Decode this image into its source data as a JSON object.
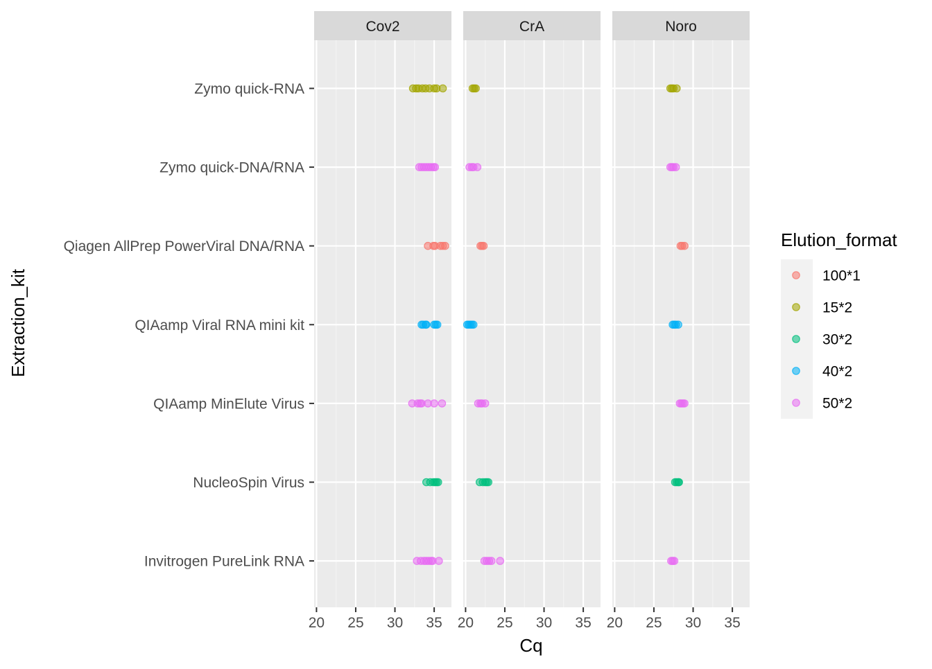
{
  "chart_data": {
    "type": "scatter",
    "facet_variable": "Target",
    "facets": [
      "Cov2",
      "CrA",
      "Noro"
    ],
    "y_categories": [
      "Zymo quick-RNA",
      "Zymo quick-DNA/RNA",
      "Qiagen AllPrep PowerViral DNA/RNA",
      "QIAamp Viral RNA mini kit",
      "QIAamp MinElute Virus",
      "NucleoSpin Virus",
      "Invitrogen PureLink RNA"
    ],
    "xlabel": "Cq",
    "ylabel": "Extraction_kit",
    "xlim": [
      19.7,
      37.2
    ],
    "xticks": [
      20,
      25,
      30,
      35
    ],
    "grid": true,
    "legend": {
      "title": "Elution_format",
      "placement": "right",
      "entries": [
        {
          "label": "100*1",
          "color": "#F8766D"
        },
        {
          "label": "15*2",
          "color": "#A3A500"
        },
        {
          "label": "30*2",
          "color": "#00BF7D"
        },
        {
          "label": "40*2",
          "color": "#00B0F6"
        },
        {
          "label": "50*2",
          "color": "#E76BF3"
        }
      ]
    },
    "points": {
      "Cov2": [
        {
          "kit": "Zymo quick-RNA",
          "format": "15*2",
          "cq": [
            32.3,
            32.7,
            33.0,
            33.5,
            33.9,
            34.4,
            35.0,
            35.3,
            36.1
          ]
        },
        {
          "kit": "Zymo quick-DNA/RNA",
          "format": "50*2",
          "cq": [
            33.1,
            33.4,
            33.7,
            34.0,
            34.3,
            34.6,
            34.9,
            35.1
          ]
        },
        {
          "kit": "Qiagen AllPrep PowerViral DNA/RNA",
          "format": "100*1",
          "cq": [
            34.2,
            34.9,
            35.1,
            35.8,
            36.1,
            36.4
          ]
        },
        {
          "kit": "QIAamp Viral RNA mini kit",
          "format": "40*2",
          "cq": [
            33.4,
            33.6,
            33.9,
            34.0,
            35.0,
            35.2,
            35.4
          ]
        },
        {
          "kit": "QIAamp MinElute Virus",
          "format": "50*2",
          "cq": [
            32.2,
            32.9,
            33.2,
            33.4,
            34.2,
            35.0,
            36.0
          ]
        },
        {
          "kit": "NucleoSpin Virus",
          "format": "30*2",
          "cq": [
            34.0,
            34.5,
            34.9,
            35.1,
            35.3,
            35.5
          ]
        },
        {
          "kit": "Invitrogen PureLink RNA",
          "format": "50*2",
          "cq": [
            32.8,
            33.3,
            33.7,
            34.0,
            34.3,
            34.6,
            34.8,
            35.6
          ]
        }
      ],
      "CrA": [
        {
          "kit": "Zymo quick-RNA",
          "format": "15*2",
          "cq": [
            20.9,
            21.1,
            21.3
          ]
        },
        {
          "kit": "Zymo quick-DNA/RNA",
          "format": "50*2",
          "cq": [
            20.5,
            20.8,
            21.0,
            21.5
          ]
        },
        {
          "kit": "Qiagen AllPrep PowerViral DNA/RNA",
          "format": "100*1",
          "cq": [
            21.9,
            22.1,
            22.3
          ]
        },
        {
          "kit": "QIAamp Viral RNA mini kit",
          "format": "40*2",
          "cq": [
            20.2,
            20.4,
            20.6,
            20.8,
            21.0
          ]
        },
        {
          "kit": "QIAamp MinElute Virus",
          "format": "50*2",
          "cq": [
            21.6,
            21.9,
            22.1,
            22.5
          ]
        },
        {
          "kit": "NucleoSpin Virus",
          "format": "30*2",
          "cq": [
            21.8,
            22.2,
            22.5,
            22.7,
            22.9
          ]
        },
        {
          "kit": "Invitrogen PureLink RNA",
          "format": "50*2",
          "cq": [
            22.4,
            22.7,
            23.0,
            23.3,
            24.4
          ]
        }
      ],
      "Noro": [
        {
          "kit": "Zymo quick-RNA",
          "format": "15*2",
          "cq": [
            27.1,
            27.3,
            27.5,
            27.9
          ]
        },
        {
          "kit": "Zymo quick-DNA/RNA",
          "format": "50*2",
          "cq": [
            27.1,
            27.3,
            27.5,
            27.8
          ]
        },
        {
          "kit": "Qiagen AllPrep PowerViral DNA/RNA",
          "format": "100*1",
          "cq": [
            28.4,
            28.6,
            28.9
          ]
        },
        {
          "kit": "QIAamp Viral RNA mini kit",
          "format": "40*2",
          "cq": [
            27.4,
            27.6,
            27.8,
            28.1
          ]
        },
        {
          "kit": "QIAamp MinElute Virus",
          "format": "50*2",
          "cq": [
            28.3,
            28.5,
            28.7,
            28.9
          ]
        },
        {
          "kit": "NucleoSpin Virus",
          "format": "30*2",
          "cq": [
            27.7,
            27.9,
            28.1,
            28.2
          ]
        },
        {
          "kit": "Invitrogen PureLink RNA",
          "format": "50*2",
          "cq": [
            27.2,
            27.4,
            27.6
          ]
        }
      ]
    }
  }
}
